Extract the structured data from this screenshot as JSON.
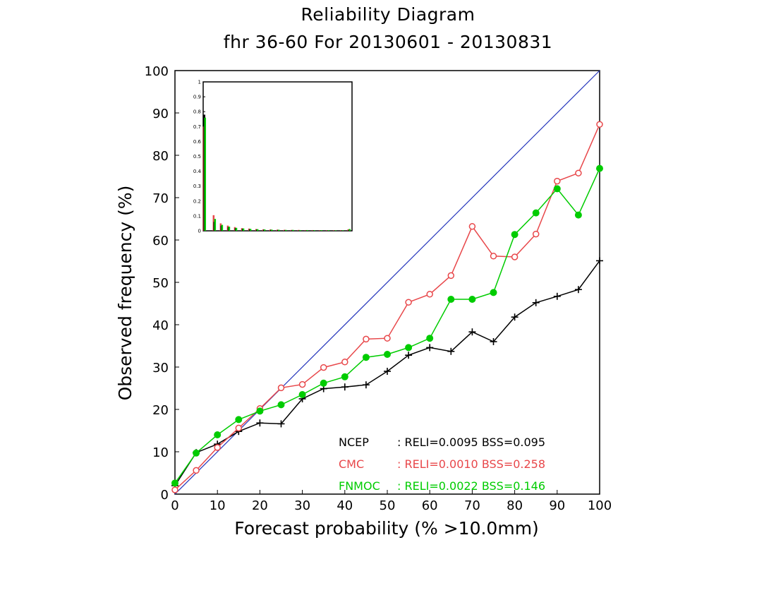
{
  "chart_data": {
    "type": "line",
    "title": "Reliability Diagram",
    "subtitle": "fhr 36-60 For 20130601 - 20130831",
    "xlabel": "Forecast probability (% >10.0mm)",
    "ylabel": "Observed frequency (%)",
    "xlim": [
      0,
      100
    ],
    "ylim": [
      0,
      100
    ],
    "xticks": [
      0,
      10,
      20,
      30,
      40,
      50,
      60,
      70,
      80,
      90,
      100
    ],
    "yticks": [
      0,
      10,
      20,
      30,
      40,
      50,
      60,
      70,
      80,
      90,
      100
    ],
    "grid": false,
    "x": [
      0,
      5,
      10,
      15,
      20,
      25,
      30,
      35,
      40,
      45,
      50,
      55,
      60,
      65,
      70,
      75,
      80,
      85,
      90,
      95,
      100
    ],
    "diagonal_color": "#2233bb",
    "series": [
      {
        "name": "NCEP",
        "color": "#000000",
        "marker": "plus",
        "values": [
          2.0,
          9.8,
          11.8,
          14.8,
          16.8,
          16.6,
          22.5,
          24.9,
          25.3,
          25.8,
          29.0,
          32.8,
          34.6,
          33.7,
          38.3,
          36.0,
          41.8,
          45.2,
          46.7,
          48.3,
          55.1
        ]
      },
      {
        "name": "CMC",
        "color": "#e8474a",
        "marker": "open-circle",
        "values": [
          1.0,
          5.6,
          11.0,
          15.6,
          20.2,
          25.1,
          25.9,
          29.9,
          31.2,
          36.6,
          36.8,
          45.3,
          47.2,
          51.6,
          63.2,
          56.2,
          56.0,
          61.4,
          73.9,
          75.8,
          87.3
        ]
      },
      {
        "name": "FNMOC",
        "color": "#00cc00",
        "marker": "filled-circle",
        "values": [
          2.6,
          9.7,
          14.0,
          17.6,
          19.6,
          21.1,
          23.5,
          26.2,
          27.7,
          32.3,
          33.0,
          34.6,
          36.8,
          46.0,
          46.0,
          47.6,
          61.3,
          66.4,
          72.1,
          65.9,
          76.9
        ]
      }
    ],
    "legend_position": "bottom-right",
    "legend": [
      {
        "name": "NCEP",
        "text": ": RELI=0.0095 BSS=0.095",
        "color": "#000000"
      },
      {
        "name": "CMC",
        "text": ": RELI=0.0010 BSS=0.258",
        "color": "#e8474a"
      },
      {
        "name": "FNMOC",
        "text": ": RELI=0.0022 BSS=0.146",
        "color": "#00cc00"
      }
    ],
    "inset": {
      "type": "bar",
      "position": "top-left",
      "ylim": [
        0,
        1
      ],
      "yticks": [
        "0",
        "0.1",
        "0.2",
        "0.3",
        "0.4",
        "0.5",
        "0.6",
        "0.7",
        "0.8",
        "0.9",
        "1"
      ],
      "series": [
        {
          "name": "NCEP",
          "color": "#000000",
          "values": [
            0.78,
            0.06,
            0.035,
            0.025,
            0.018,
            0.014,
            0.011,
            0.009,
            0.008,
            0.007,
            0.006,
            0.005,
            0.005,
            0.004,
            0.004,
            0.004,
            0.003,
            0.003,
            0.003,
            0.003,
            0.006
          ]
        },
        {
          "name": "CMC",
          "color": "#e8474a",
          "values": [
            0.7,
            0.105,
            0.05,
            0.035,
            0.025,
            0.018,
            0.015,
            0.012,
            0.01,
            0.009,
            0.008,
            0.007,
            0.006,
            0.006,
            0.005,
            0.005,
            0.004,
            0.004,
            0.004,
            0.004,
            0.01
          ]
        },
        {
          "name": "FNMOC",
          "color": "#00cc00",
          "values": [
            0.76,
            0.08,
            0.04,
            0.028,
            0.02,
            0.016,
            0.013,
            0.011,
            0.009,
            0.008,
            0.007,
            0.006,
            0.006,
            0.005,
            0.005,
            0.004,
            0.004,
            0.004,
            0.003,
            0.003,
            0.012
          ]
        }
      ]
    }
  }
}
